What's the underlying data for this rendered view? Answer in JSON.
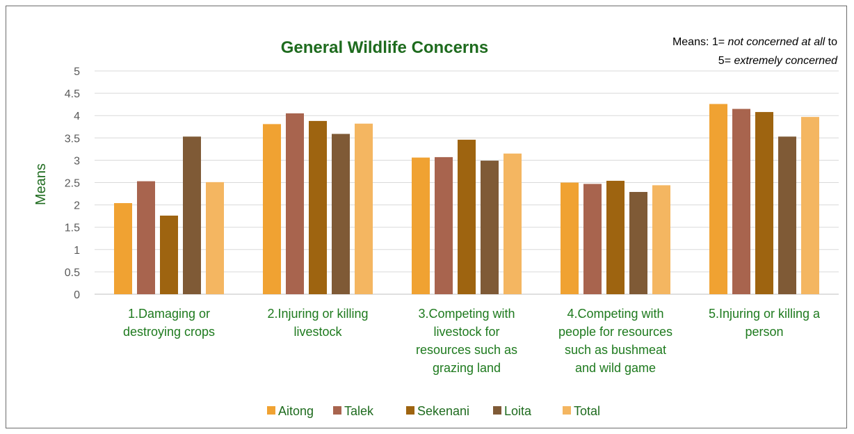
{
  "chart_data": {
    "type": "bar",
    "title": "General Wildlife Concerns",
    "ylabel": "Means",
    "xlabel": "",
    "ylim": [
      0,
      5
    ],
    "yticks": [
      0,
      0.5,
      1,
      1.5,
      2,
      2.5,
      3,
      3.5,
      4,
      4.5,
      5
    ],
    "grid": true,
    "legend_position": "bottom",
    "note": {
      "line1_prefix": "Means: 1= ",
      "line1_italic": "not concerned at all",
      "line1_suffix": " to",
      "line2_prefix": "5= ",
      "line2_italic": "extremely concerned"
    },
    "categories": [
      [
        "1.Damaging or",
        "destroying crops"
      ],
      [
        "2.Injuring or killing",
        "livestock"
      ],
      [
        "3.Competing with",
        "livestock for",
        "resources such as",
        "grazing land"
      ],
      [
        "4.Competing with",
        "people for resources",
        "such as bushmeat",
        "and wild game"
      ],
      [
        "5.Injuring or killing a",
        "person"
      ]
    ],
    "series": [
      {
        "name": "Aitong",
        "color": "#f0a232",
        "values": [
          2.04,
          3.81,
          3.06,
          2.5,
          4.26
        ]
      },
      {
        "name": "Talek",
        "color": "#a8644e",
        "values": [
          2.53,
          4.05,
          3.07,
          2.47,
          4.15
        ]
      },
      {
        "name": "Sekenani",
        "color": "#9e6410",
        "values": [
          1.76,
          3.88,
          3.46,
          2.54,
          4.08
        ]
      },
      {
        "name": "Loita",
        "color": "#7f5a36",
        "values": [
          3.53,
          3.59,
          2.99,
          2.29,
          3.53
        ]
      },
      {
        "name": "Total",
        "color": "#f4b661",
        "values": [
          2.51,
          3.82,
          3.15,
          2.44,
          3.97
        ]
      }
    ]
  }
}
